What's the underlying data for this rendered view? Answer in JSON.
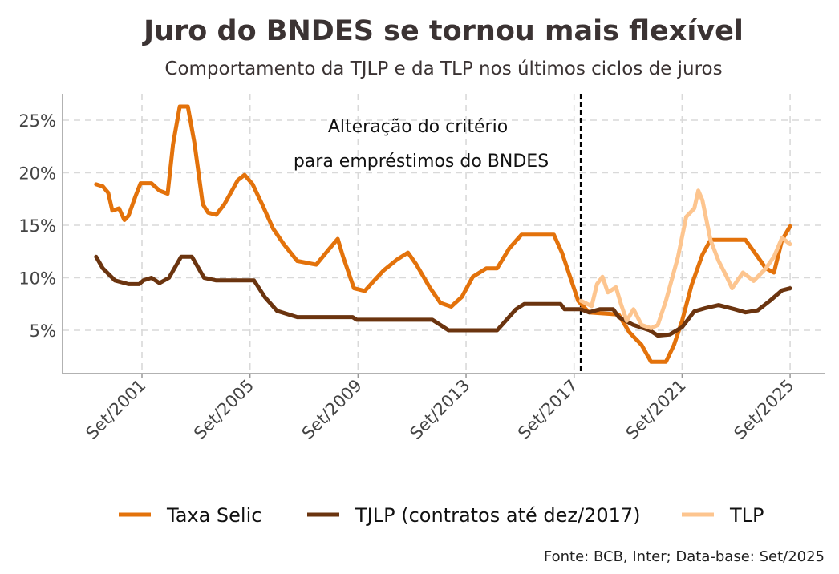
{
  "chart_data": {
    "type": "line",
    "title": "Juro do BNDES se tornou mais flexível",
    "subtitle": "Comportamento da TJLP e da TLP nos últimos ciclos de juros",
    "xlabel": "",
    "ylabel": "",
    "xlim": [
      2000.0,
      2025.75
    ],
    "ylim": [
      0.8,
      27.5
    ],
    "grid": true,
    "x_ticks": [
      {
        "value": 2001.75,
        "label": "Set/2001"
      },
      {
        "value": 2005.75,
        "label": "Set/2005"
      },
      {
        "value": 2009.75,
        "label": "Set/2009"
      },
      {
        "value": 2013.75,
        "label": "Set/2013"
      },
      {
        "value": 2017.75,
        "label": "Set/2017"
      },
      {
        "value": 2021.75,
        "label": "Set/2021"
      },
      {
        "value": 2025.75,
        "label": "Set/2025"
      }
    ],
    "y_ticks": [
      {
        "value": 5,
        "label": "5%"
      },
      {
        "value": 10,
        "label": "10%"
      },
      {
        "value": 15,
        "label": "15%"
      },
      {
        "value": 20,
        "label": "20%"
      },
      {
        "value": 25,
        "label": "25%"
      }
    ],
    "annotation": {
      "x": 2018.0,
      "lines": [
        "Alteração do critério",
        "para empréstimos do BNDES"
      ]
    },
    "legend_position": "bottom",
    "series": [
      {
        "name": "Taxa Selic",
        "color": "#E3720B",
        "points": [
          [
            2000.05,
            18.9
          ],
          [
            2000.3,
            18.7
          ],
          [
            2000.5,
            18.1
          ],
          [
            2000.65,
            16.4
          ],
          [
            2000.9,
            16.6
          ],
          [
            2001.1,
            15.5
          ],
          [
            2001.25,
            15.9
          ],
          [
            2001.5,
            17.7
          ],
          [
            2001.7,
            19.0
          ],
          [
            2002.1,
            19.0
          ],
          [
            2002.4,
            18.3
          ],
          [
            2002.7,
            18.0
          ],
          [
            2002.9,
            22.7
          ],
          [
            2003.15,
            26.3
          ],
          [
            2003.45,
            26.3
          ],
          [
            2003.7,
            22.7
          ],
          [
            2004.0,
            17.0
          ],
          [
            2004.2,
            16.2
          ],
          [
            2004.5,
            16.0
          ],
          [
            2004.8,
            17.0
          ],
          [
            2005.3,
            19.3
          ],
          [
            2005.55,
            19.8
          ],
          [
            2005.85,
            18.9
          ],
          [
            2006.2,
            17.0
          ],
          [
            2006.6,
            14.7
          ],
          [
            2007.0,
            13.2
          ],
          [
            2007.5,
            11.6
          ],
          [
            2008.2,
            11.25
          ],
          [
            2008.7,
            12.8
          ],
          [
            2009.0,
            13.7
          ],
          [
            2009.2,
            12.0
          ],
          [
            2009.6,
            9.0
          ],
          [
            2010.0,
            8.75
          ],
          [
            2010.3,
            9.6
          ],
          [
            2010.7,
            10.7
          ],
          [
            2011.2,
            11.75
          ],
          [
            2011.6,
            12.4
          ],
          [
            2011.9,
            11.3
          ],
          [
            2012.4,
            9.1
          ],
          [
            2012.8,
            7.6
          ],
          [
            2013.2,
            7.25
          ],
          [
            2013.6,
            8.2
          ],
          [
            2014.0,
            10.1
          ],
          [
            2014.5,
            10.9
          ],
          [
            2014.9,
            10.9
          ],
          [
            2015.35,
            12.8
          ],
          [
            2015.8,
            14.1
          ],
          [
            2017.0,
            14.1
          ],
          [
            2017.3,
            12.4
          ],
          [
            2017.6,
            10.1
          ],
          [
            2017.9,
            7.8
          ],
          [
            2018.3,
            6.7
          ],
          [
            2019.4,
            6.5
          ],
          [
            2019.8,
            4.8
          ],
          [
            2020.25,
            3.6
          ],
          [
            2020.6,
            2.0
          ],
          [
            2021.15,
            2.0
          ],
          [
            2021.45,
            3.6
          ],
          [
            2021.75,
            5.9
          ],
          [
            2022.1,
            9.3
          ],
          [
            2022.5,
            12.2
          ],
          [
            2022.8,
            13.6
          ],
          [
            2024.1,
            13.6
          ],
          [
            2024.55,
            12.0
          ],
          [
            2024.85,
            10.9
          ],
          [
            2025.15,
            10.5
          ],
          [
            2025.45,
            13.6
          ],
          [
            2025.75,
            14.9
          ]
        ]
      },
      {
        "name": "TJLP (contratos até dez/2017)",
        "color": "#6B340F",
        "points": [
          [
            2000.05,
            12.0
          ],
          [
            2000.3,
            10.9
          ],
          [
            2000.75,
            9.75
          ],
          [
            2001.25,
            9.4
          ],
          [
            2001.65,
            9.4
          ],
          [
            2001.8,
            9.75
          ],
          [
            2002.1,
            10.0
          ],
          [
            2002.4,
            9.5
          ],
          [
            2002.75,
            10.0
          ],
          [
            2003.2,
            12.0
          ],
          [
            2003.6,
            12.0
          ],
          [
            2004.05,
            10.0
          ],
          [
            2004.5,
            9.75
          ],
          [
            2005.9,
            9.75
          ],
          [
            2006.3,
            8.15
          ],
          [
            2006.75,
            6.85
          ],
          [
            2007.5,
            6.25
          ],
          [
            2009.55,
            6.25
          ],
          [
            2009.7,
            6.0
          ],
          [
            2012.5,
            6.0
          ],
          [
            2012.8,
            5.5
          ],
          [
            2013.1,
            5.0
          ],
          [
            2014.9,
            5.0
          ],
          [
            2015.25,
            6.0
          ],
          [
            2015.6,
            7.0
          ],
          [
            2015.9,
            7.5
          ],
          [
            2017.25,
            7.5
          ],
          [
            2017.4,
            7.0
          ],
          [
            2018.0,
            7.0
          ],
          [
            2018.3,
            6.7
          ],
          [
            2018.7,
            7.0
          ],
          [
            2019.2,
            7.0
          ],
          [
            2019.4,
            6.25
          ],
          [
            2019.95,
            5.5
          ],
          [
            2020.55,
            5.0
          ],
          [
            2020.85,
            4.5
          ],
          [
            2021.3,
            4.6
          ],
          [
            2021.75,
            5.3
          ],
          [
            2022.2,
            6.8
          ],
          [
            2022.6,
            7.1
          ],
          [
            2023.1,
            7.4
          ],
          [
            2023.7,
            7.0
          ],
          [
            2024.1,
            6.7
          ],
          [
            2024.55,
            6.9
          ],
          [
            2025.0,
            7.8
          ],
          [
            2025.45,
            8.8
          ],
          [
            2025.75,
            9.0
          ]
        ]
      },
      {
        "name": "TLP",
        "color": "#FDC58F",
        "points": [
          [
            2018.0,
            7.8
          ],
          [
            2018.4,
            7.3
          ],
          [
            2018.6,
            9.4
          ],
          [
            2018.8,
            10.1
          ],
          [
            2019.0,
            8.6
          ],
          [
            2019.3,
            9.1
          ],
          [
            2019.5,
            7.4
          ],
          [
            2019.7,
            5.9
          ],
          [
            2019.95,
            7.0
          ],
          [
            2020.25,
            5.5
          ],
          [
            2020.6,
            5.2
          ],
          [
            2020.85,
            5.5
          ],
          [
            2021.15,
            7.8
          ],
          [
            2021.6,
            12.0
          ],
          [
            2021.9,
            15.8
          ],
          [
            2022.2,
            16.6
          ],
          [
            2022.35,
            18.3
          ],
          [
            2022.5,
            17.4
          ],
          [
            2022.8,
            13.6
          ],
          [
            2023.1,
            11.6
          ],
          [
            2023.4,
            10.1
          ],
          [
            2023.6,
            9.0
          ],
          [
            2024.0,
            10.5
          ],
          [
            2024.4,
            9.7
          ],
          [
            2024.85,
            10.9
          ],
          [
            2025.15,
            12.0
          ],
          [
            2025.45,
            13.8
          ],
          [
            2025.75,
            13.2
          ]
        ]
      }
    ],
    "source": "Fonte: BCB, Inter; Data-base: Set/2025"
  }
}
